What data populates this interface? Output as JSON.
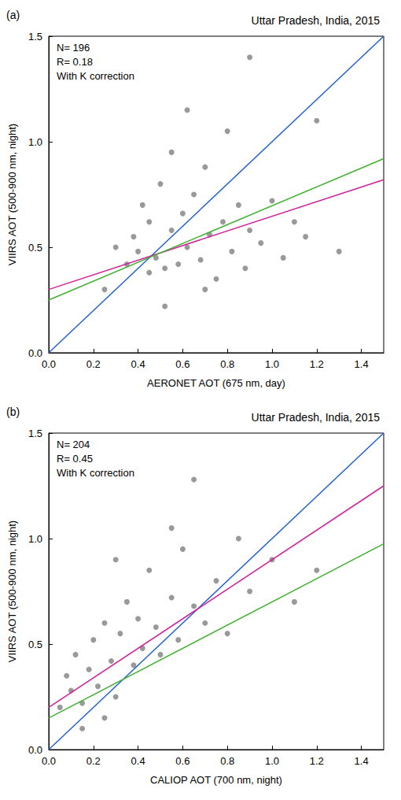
{
  "chart_data": [
    {
      "type": "scatter",
      "panel": "(a)",
      "title": "Uttar Pradesh, India, 2015",
      "annotations": [
        "N= 196",
        "R= 0.18",
        "With K correction"
      ],
      "xlabel": "AERONET AOT (675 nm, day)",
      "ylabel": "VIIRS AOT (500-900 nm, night)",
      "xlim": [
        0,
        1.5
      ],
      "xticks": [
        {
          "value": 0,
          "label": "0.0"
        },
        {
          "value": 0.2,
          "label": "0.2"
        },
        {
          "value": 0.4,
          "label": "0.4"
        },
        {
          "value": 0.6,
          "label": "0.6"
        },
        {
          "value": 0.8,
          "label": "0.8"
        },
        {
          "value": 1,
          "label": "1.0"
        },
        {
          "value": 1.2,
          "label": "1.2"
        },
        {
          "value": 1.4,
          "label": "1.4"
        }
      ],
      "ylim": [
        0,
        1.5
      ],
      "yticks": [
        {
          "value": 0,
          "label": "0.0"
        },
        {
          "value": 0.5,
          "label": "0.5"
        },
        {
          "value": 1,
          "label": "1.0"
        },
        {
          "value": 1.5,
          "label": "1.5"
        }
      ],
      "grid": false,
      "series": [
        {
          "type": "scatter",
          "color": "#808080",
          "marker": "circle",
          "x": [
            0.35,
            0.38,
            0.4,
            0.42,
            0.45,
            0.45,
            0.48,
            0.5,
            0.52,
            0.55,
            0.55,
            0.58,
            0.6,
            0.62,
            0.65,
            0.68,
            0.7,
            0.72,
            0.75,
            0.78,
            0.8,
            0.82,
            0.85,
            0.88,
            0.9,
            0.95,
            1.0,
            1.05,
            1.1,
            1.15,
            1.2,
            0.25,
            0.3,
            0.62,
            0.9,
            1.3,
            0.7,
            0.52
          ],
          "y": [
            0.42,
            0.55,
            0.48,
            0.7,
            0.38,
            0.62,
            0.45,
            0.8,
            0.4,
            0.58,
            0.95,
            0.42,
            0.66,
            0.5,
            0.75,
            0.44,
            0.88,
            0.56,
            0.35,
            0.62,
            1.05,
            0.48,
            0.7,
            0.4,
            0.58,
            0.52,
            0.72,
            0.45,
            0.62,
            0.55,
            1.1,
            0.3,
            0.5,
            1.15,
            1.4,
            0.48,
            0.3,
            0.22
          ]
        },
        {
          "type": "line",
          "color": "#2060d0",
          "line_style": "solid",
          "x": [
            0,
            1.5
          ],
          "y": [
            0,
            1.5
          ]
        },
        {
          "type": "line",
          "color": "#d0209a",
          "line_style": "solid",
          "x": [
            0,
            1.5
          ],
          "y": [
            0.3,
            0.82
          ]
        },
        {
          "type": "line",
          "color": "#40b030",
          "line_style": "solid",
          "x": [
            0,
            1.5
          ],
          "y": [
            0.25,
            0.92
          ]
        }
      ]
    },
    {
      "type": "scatter",
      "panel": "(b)",
      "title": "Uttar Pradesh, India, 2015",
      "annotations": [
        "N= 204",
        "R= 0.45",
        "With K correction"
      ],
      "xlabel": "CALIOP AOT (700 nm, night)",
      "ylabel": "VIIRS AOT (500-900 nm, night)",
      "xlim": [
        0,
        1.5
      ],
      "xticks": [
        {
          "value": 0,
          "label": "0.0"
        },
        {
          "value": 0.2,
          "label": "0.2"
        },
        {
          "value": 0.4,
          "label": "0.4"
        },
        {
          "value": 0.6,
          "label": "0.6"
        },
        {
          "value": 0.8,
          "label": "0.8"
        },
        {
          "value": 1,
          "label": "1.0"
        },
        {
          "value": 1.2,
          "label": "1.2"
        },
        {
          "value": 1.4,
          "label": "1.4"
        }
      ],
      "ylim": [
        0,
        1.5
      ],
      "yticks": [
        {
          "value": 0,
          "label": "0.0"
        },
        {
          "value": 0.5,
          "label": "0.5"
        },
        {
          "value": 1,
          "label": "1.0"
        },
        {
          "value": 1.5,
          "label": "1.5"
        }
      ],
      "grid": false,
      "series": [
        {
          "type": "scatter",
          "color": "#808080",
          "marker": "circle",
          "x": [
            0.05,
            0.08,
            0.1,
            0.12,
            0.15,
            0.18,
            0.2,
            0.22,
            0.25,
            0.28,
            0.3,
            0.32,
            0.35,
            0.38,
            0.4,
            0.42,
            0.45,
            0.48,
            0.5,
            0.55,
            0.58,
            0.6,
            0.65,
            0.7,
            0.75,
            0.8,
            0.85,
            0.9,
            1.0,
            1.1,
            0.15,
            0.25,
            0.65,
            0.3,
            0.55,
            1.2
          ],
          "y": [
            0.2,
            0.35,
            0.28,
            0.45,
            0.22,
            0.38,
            0.52,
            0.3,
            0.6,
            0.42,
            0.25,
            0.55,
            0.7,
            0.4,
            0.62,
            0.48,
            0.85,
            0.58,
            0.45,
            0.72,
            0.52,
            0.95,
            0.68,
            0.6,
            0.8,
            0.55,
            1.0,
            0.75,
            0.9,
            0.7,
            0.1,
            0.15,
            1.28,
            0.9,
            1.05,
            0.85
          ]
        },
        {
          "type": "line",
          "color": "#2060d0",
          "line_style": "solid",
          "x": [
            0,
            1.5
          ],
          "y": [
            0,
            1.5
          ]
        },
        {
          "type": "line",
          "color": "#d0209a",
          "line_style": "solid",
          "x": [
            0,
            1.5
          ],
          "y": [
            0.2,
            1.25
          ]
        },
        {
          "type": "line",
          "color": "#40b030",
          "line_style": "solid",
          "x": [
            0,
            1.5
          ],
          "y": [
            0.15,
            0.975
          ]
        }
      ]
    }
  ]
}
